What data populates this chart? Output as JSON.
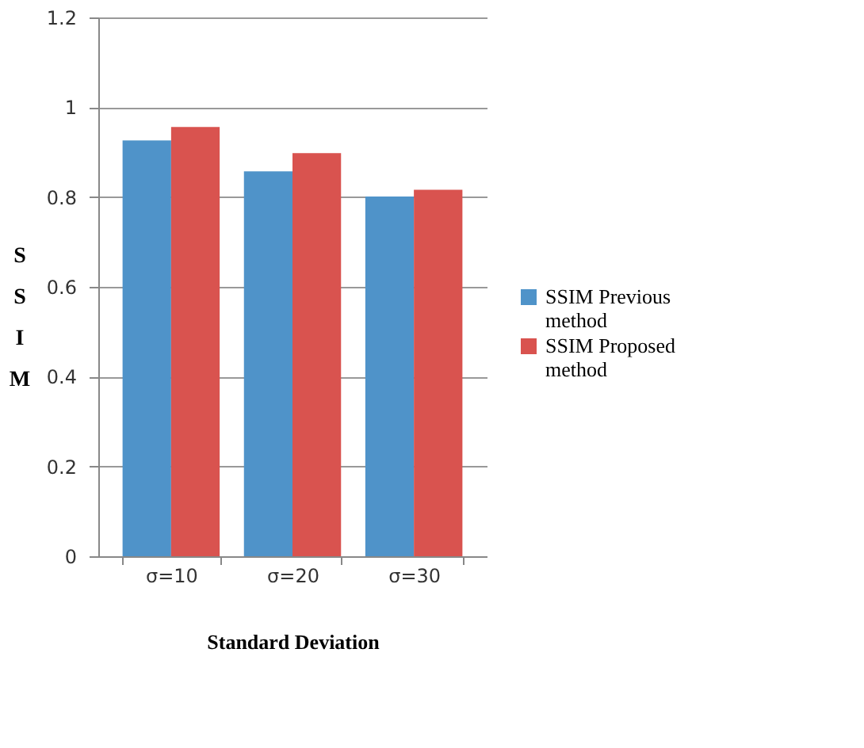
{
  "chart_data": {
    "type": "bar",
    "xlabel": "Standard Deviation",
    "ylabel": "SSIM",
    "categories": [
      "σ=10",
      "σ=20",
      "σ=30"
    ],
    "series": [
      {
        "name": "SSIM Previous method",
        "color": "#4f93c9",
        "values": [
          0.926,
          0.857,
          0.801
        ]
      },
      {
        "name": "SSIM Proposed method",
        "color": "#d9534f",
        "values": [
          0.956,
          0.898,
          0.816
        ]
      }
    ],
    "ylim": [
      0,
      1.2
    ],
    "yticks": [
      0,
      0.2,
      0.4,
      0.6,
      0.8,
      1,
      1.2
    ],
    "grid": "y",
    "legend": "right"
  }
}
